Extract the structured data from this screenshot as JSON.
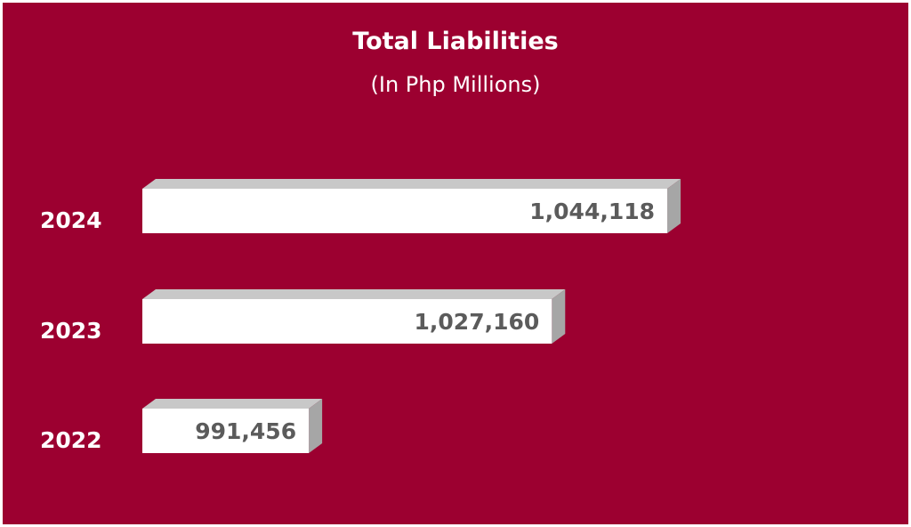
{
  "chart_data": {
    "type": "bar",
    "orientation": "horizontal",
    "title": "Total Liabilities",
    "subtitle": "(In Php Millions)",
    "categories": [
      "2024",
      "2023",
      "2022"
    ],
    "values": [
      1044118,
      1027160,
      991456
    ],
    "value_labels": [
      "1,044,118",
      "1,027,160",
      "991,456"
    ],
    "xlim": [
      967000,
      1053000
    ],
    "grid": false,
    "legend": "none",
    "style": {
      "background_color": "#9c0030",
      "bar_face_color": "#ffffff",
      "bar_top_color": "#c8c8c8",
      "bar_side_color": "#a6a6a6",
      "value_label_color": "#5b5b5b",
      "category_label_color": "#ffffff"
    }
  }
}
